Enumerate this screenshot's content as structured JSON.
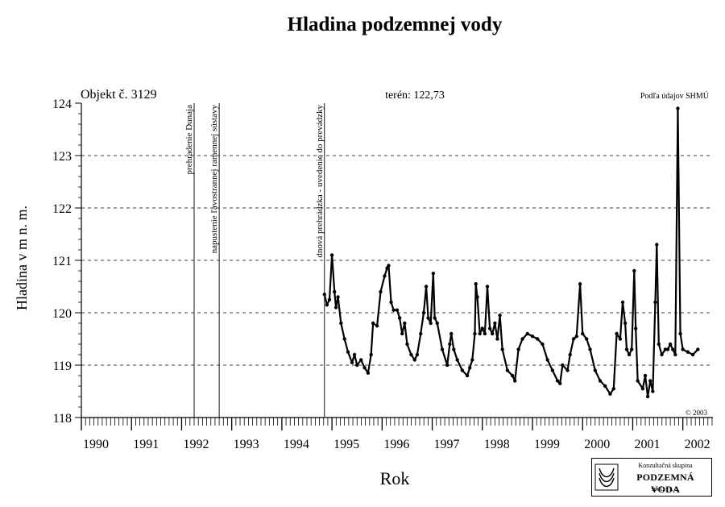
{
  "chart_data": {
    "type": "scatter",
    "title": "Hladina podzemnej vody",
    "object_label": "Objekt č. 3129",
    "terrain_label": "terén: 122,73",
    "source_label": "Podľa údajov SHMÚ",
    "copyright": "© 2003",
    "xlabel": "Rok",
    "ylabel": "Hladina v m n. m.",
    "xlim": [
      1990.0,
      2002.6
    ],
    "ylim": [
      118,
      124
    ],
    "y_ticks": [
      118,
      119,
      120,
      121,
      122,
      123,
      124
    ],
    "x_tick_labels": [
      "1990",
      "1991",
      "1992",
      "1993",
      "1994",
      "1995",
      "1996",
      "1997",
      "1998",
      "1999",
      "2000",
      "2001",
      "2002"
    ],
    "grid": "horizontal-dashed",
    "events": [
      {
        "x": 1992.25,
        "label": "prehradenie Dunaja"
      },
      {
        "x": 1992.75,
        "label": "napustenie ľavostrannej ramennej sústavy"
      },
      {
        "x": 1994.85,
        "label": "dnová prehrádzka - uvedenie do prevádzky"
      }
    ],
    "series": [
      {
        "points": [
          [
            1994.85,
            120.35
          ],
          [
            1994.9,
            120.15
          ],
          [
            1994.95,
            120.25
          ],
          [
            1995.0,
            121.1
          ],
          [
            1995.05,
            120.4
          ],
          [
            1995.08,
            120.1
          ],
          [
            1995.12,
            120.3
          ],
          [
            1995.18,
            119.8
          ],
          [
            1995.25,
            119.5
          ],
          [
            1995.32,
            119.25
          ],
          [
            1995.4,
            119.05
          ],
          [
            1995.45,
            119.2
          ],
          [
            1995.5,
            119.0
          ],
          [
            1995.58,
            119.1
          ],
          [
            1995.65,
            118.95
          ],
          [
            1995.72,
            118.85
          ],
          [
            1995.78,
            119.2
          ],
          [
            1995.82,
            119.8
          ],
          [
            1995.9,
            119.75
          ],
          [
            1995.97,
            120.4
          ],
          [
            1996.05,
            120.7
          ],
          [
            1996.1,
            120.85
          ],
          [
            1996.13,
            120.9
          ],
          [
            1996.18,
            120.2
          ],
          [
            1996.23,
            120.05
          ],
          [
            1996.3,
            120.05
          ],
          [
            1996.35,
            119.9
          ],
          [
            1996.4,
            119.6
          ],
          [
            1996.45,
            119.8
          ],
          [
            1996.5,
            119.4
          ],
          [
            1996.58,
            119.2
          ],
          [
            1996.65,
            119.1
          ],
          [
            1996.7,
            119.2
          ],
          [
            1996.77,
            119.6
          ],
          [
            1996.83,
            120.0
          ],
          [
            1996.88,
            120.5
          ],
          [
            1996.92,
            119.9
          ],
          [
            1996.97,
            119.8
          ],
          [
            1997.02,
            120.75
          ],
          [
            1997.05,
            119.9
          ],
          [
            1997.1,
            119.8
          ],
          [
            1997.2,
            119.3
          ],
          [
            1997.3,
            119.0
          ],
          [
            1997.35,
            119.4
          ],
          [
            1997.38,
            119.6
          ],
          [
            1997.43,
            119.3
          ],
          [
            1997.5,
            119.1
          ],
          [
            1997.6,
            118.9
          ],
          [
            1997.7,
            118.8
          ],
          [
            1997.75,
            118.95
          ],
          [
            1997.8,
            119.1
          ],
          [
            1997.85,
            119.6
          ],
          [
            1997.87,
            120.55
          ],
          [
            1997.9,
            120.3
          ],
          [
            1997.95,
            119.6
          ],
          [
            1998.0,
            119.7
          ],
          [
            1998.05,
            119.6
          ],
          [
            1998.1,
            120.5
          ],
          [
            1998.15,
            119.7
          ],
          [
            1998.2,
            119.6
          ],
          [
            1998.25,
            119.8
          ],
          [
            1998.3,
            119.5
          ],
          [
            1998.35,
            119.95
          ],
          [
            1998.4,
            119.3
          ],
          [
            1998.5,
            118.9
          ],
          [
            1998.6,
            118.8
          ],
          [
            1998.65,
            118.7
          ],
          [
            1998.72,
            119.3
          ],
          [
            1998.8,
            119.5
          ],
          [
            1998.9,
            119.6
          ],
          [
            1999.0,
            119.55
          ],
          [
            1999.1,
            119.5
          ],
          [
            1999.2,
            119.4
          ],
          [
            1999.3,
            119.1
          ],
          [
            1999.4,
            118.9
          ],
          [
            1999.5,
            118.7
          ],
          [
            1999.55,
            118.65
          ],
          [
            1999.6,
            119.0
          ],
          [
            1999.7,
            118.9
          ],
          [
            1999.75,
            119.2
          ],
          [
            1999.82,
            119.5
          ],
          [
            1999.88,
            119.55
          ],
          [
            1999.95,
            120.55
          ],
          [
            2000.0,
            119.6
          ],
          [
            2000.08,
            119.5
          ],
          [
            2000.15,
            119.3
          ],
          [
            2000.25,
            118.9
          ],
          [
            2000.35,
            118.7
          ],
          [
            2000.45,
            118.6
          ],
          [
            2000.55,
            118.45
          ],
          [
            2000.62,
            118.55
          ],
          [
            2000.68,
            119.6
          ],
          [
            2000.75,
            119.5
          ],
          [
            2000.8,
            120.2
          ],
          [
            2000.85,
            119.8
          ],
          [
            2000.88,
            119.3
          ],
          [
            2000.93,
            119.2
          ],
          [
            2000.98,
            119.3
          ],
          [
            2001.03,
            120.8
          ],
          [
            2001.06,
            119.7
          ],
          [
            2001.1,
            118.7
          ],
          [
            2001.2,
            118.55
          ],
          [
            2001.25,
            118.8
          ],
          [
            2001.3,
            118.4
          ],
          [
            2001.35,
            118.7
          ],
          [
            2001.4,
            118.5
          ],
          [
            2001.45,
            120.2
          ],
          [
            2001.48,
            121.3
          ],
          [
            2001.52,
            119.4
          ],
          [
            2001.58,
            119.2
          ],
          [
            2001.65,
            119.3
          ],
          [
            2001.7,
            119.3
          ],
          [
            2001.75,
            119.4
          ],
          [
            2001.8,
            119.3
          ],
          [
            2001.85,
            119.2
          ],
          [
            2001.9,
            123.9
          ],
          [
            2001.95,
            119.6
          ],
          [
            2002.0,
            119.3
          ],
          [
            2002.1,
            119.25
          ],
          [
            2002.2,
            119.2
          ],
          [
            2002.3,
            119.3
          ]
        ]
      }
    ]
  },
  "logo": {
    "line1": "Konzultačná skupina",
    "line2": "PODZEMNÁ VODA",
    "line3": "spol. s r. o."
  }
}
